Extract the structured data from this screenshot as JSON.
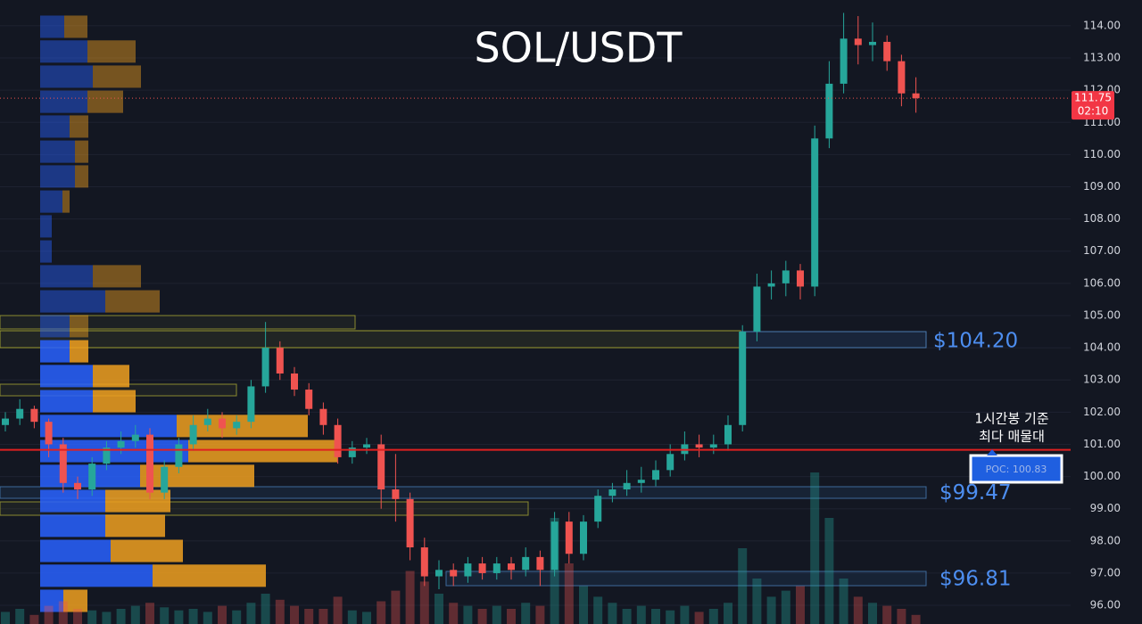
{
  "chart_data": {
    "type": "candlestick",
    "title": "SOL/USDT",
    "ylim": [
      95.42,
      114.8
    ],
    "yticks": [
      {
        "value": 96,
        "label": "96.00"
      },
      {
        "value": 97,
        "label": "97.00"
      },
      {
        "value": 98,
        "label": "98.00"
      },
      {
        "value": 99,
        "label": "99.00"
      },
      {
        "value": 100,
        "label": "100.00"
      },
      {
        "value": 101,
        "label": "101.00"
      },
      {
        "value": 102,
        "label": "102.00"
      },
      {
        "value": 103,
        "label": "103.00"
      },
      {
        "value": 104,
        "label": "104.00"
      },
      {
        "value": 105,
        "label": "105.00"
      },
      {
        "value": 106,
        "label": "106.00"
      },
      {
        "value": 107,
        "label": "107.00"
      },
      {
        "value": 108,
        "label": "108.00"
      },
      {
        "value": 109,
        "label": "109.00"
      },
      {
        "value": 110,
        "label": "110.00"
      },
      {
        "value": 111,
        "label": "111.00"
      },
      {
        "value": 112,
        "label": "112.00"
      },
      {
        "value": 113,
        "label": "113.00"
      },
      {
        "value": 114,
        "label": "114.00"
      }
    ],
    "grid": true,
    "up_color": "#26a69a",
    "down_color": "#ef5350",
    "open": [
      101.6,
      101.8,
      102.1,
      101.7,
      101.0,
      99.8,
      99.6,
      100.4,
      100.9,
      101.1,
      101.3,
      99.5,
      100.3,
      101.0,
      101.6,
      101.8,
      101.5,
      101.7,
      102.8,
      104.0,
      103.2,
      102.7,
      102.1,
      101.6,
      100.6,
      100.9,
      101.0,
      99.6,
      99.3,
      97.8,
      96.9,
      97.1,
      96.9,
      97.3,
      97.0,
      97.3,
      97.1,
      97.5,
      97.1,
      98.6,
      97.6,
      98.6,
      99.4,
      99.6,
      99.8,
      99.9,
      100.2,
      100.7,
      101.0,
      100.9,
      101.0,
      101.6,
      104.5,
      105.9,
      106.0,
      106.4,
      105.9,
      110.5,
      112.2,
      113.6,
      113.4,
      113.5,
      112.9,
      111.9
    ],
    "high": [
      102.0,
      102.4,
      102.2,
      101.8,
      101.2,
      100.0,
      100.6,
      101.1,
      101.4,
      101.6,
      101.5,
      100.5,
      101.2,
      101.9,
      102.1,
      102.0,
      101.9,
      103.0,
      104.8,
      104.2,
      103.4,
      102.9,
      102.3,
      101.8,
      101.1,
      101.2,
      101.3,
      100.7,
      99.5,
      98.1,
      97.4,
      97.3,
      97.5,
      97.5,
      97.5,
      97.5,
      97.8,
      97.7,
      98.9,
      98.9,
      98.8,
      99.6,
      99.8,
      100.2,
      100.3,
      100.5,
      101.0,
      101.4,
      101.3,
      101.3,
      101.9,
      104.7,
      106.3,
      106.4,
      106.7,
      106.6,
      110.9,
      112.9,
      114.4,
      114.3,
      114.1,
      113.7,
      113.1,
      112.4
    ],
    "low": [
      101.4,
      101.6,
      101.5,
      100.6,
      99.5,
      99.3,
      99.4,
      100.2,
      100.7,
      100.9,
      99.3,
      99.3,
      100.1,
      100.8,
      101.4,
      101.2,
      101.3,
      101.5,
      102.6,
      103.0,
      102.5,
      101.9,
      101.3,
      100.4,
      100.4,
      100.7,
      99.0,
      98.6,
      97.4,
      96.6,
      96.5,
      96.6,
      96.7,
      96.8,
      96.8,
      96.8,
      96.9,
      96.6,
      96.9,
      97.3,
      97.4,
      98.4,
      99.2,
      99.4,
      99.5,
      99.7,
      100.0,
      100.5,
      100.6,
      100.7,
      100.8,
      101.4,
      104.2,
      105.5,
      105.6,
      105.5,
      105.6,
      110.2,
      111.9,
      112.8,
      112.9,
      112.6,
      111.5,
      111.3
    ],
    "close": [
      101.8,
      102.1,
      101.7,
      101.0,
      99.8,
      99.6,
      100.4,
      100.9,
      101.1,
      101.3,
      99.5,
      100.3,
      101.0,
      101.6,
      101.8,
      101.5,
      101.7,
      102.8,
      104.0,
      103.2,
      102.7,
      102.1,
      101.6,
      100.6,
      100.9,
      101.0,
      99.6,
      99.3,
      97.8,
      96.9,
      97.1,
      96.9,
      97.3,
      97.0,
      97.3,
      97.1,
      97.5,
      97.1,
      98.6,
      97.6,
      98.6,
      99.4,
      99.6,
      99.8,
      99.9,
      100.2,
      100.7,
      101.0,
      100.9,
      101.0,
      101.6,
      104.5,
      105.9,
      106.0,
      106.4,
      105.9,
      110.5,
      112.2,
      113.6,
      113.4,
      113.5,
      112.9,
      111.9,
      111.75
    ],
    "volume": [
      8,
      10,
      6,
      12,
      15,
      10,
      9,
      8,
      10,
      12,
      14,
      11,
      9,
      10,
      8,
      12,
      9,
      14,
      20,
      16,
      12,
      10,
      10,
      18,
      9,
      8,
      15,
      22,
      35,
      28,
      20,
      14,
      12,
      10,
      12,
      10,
      14,
      12,
      70,
      40,
      25,
      18,
      14,
      10,
      12,
      10,
      9,
      12,
      8,
      10,
      14,
      50,
      30,
      18,
      22,
      25,
      100,
      70,
      30,
      18,
      14,
      12,
      10,
      6
    ],
    "volume_profile": {
      "buy_color": "#2962ff",
      "sell_color": "#f0a020",
      "levels": [
        113.97,
        113.2,
        112.42,
        111.64,
        110.87,
        110.09,
        109.32,
        108.54,
        107.77,
        106.99,
        106.22,
        105.44,
        104.67,
        103.89,
        103.12,
        102.34,
        101.57,
        100.79,
        100.02,
        99.24,
        98.47,
        97.69,
        96.92,
        96.14
      ],
      "buy": [
        27,
        53,
        59,
        53,
        33,
        39,
        39,
        25,
        13,
        13,
        59,
        73,
        33,
        33,
        59,
        59,
        153,
        166,
        112,
        73,
        73,
        79,
        126,
        26
      ],
      "sell": [
        26,
        54,
        54,
        40,
        21,
        15,
        15,
        8,
        0,
        0,
        54,
        61,
        21,
        21,
        41,
        48,
        147,
        167,
        128,
        73,
        67,
        81,
        127,
        27
      ]
    },
    "last_price": 111.75,
    "countdown": "02:10",
    "poc": {
      "value": 100.83,
      "label": "POC: 100.83"
    },
    "poc_note": [
      "1시간봉 기준",
      "최다 매물대"
    ],
    "annotations": [
      {
        "value": 104.2,
        "label": "$104.20"
      },
      {
        "value": 99.47,
        "label": "$99.47"
      },
      {
        "value": 96.81,
        "label": "$96.81"
      }
    ]
  }
}
